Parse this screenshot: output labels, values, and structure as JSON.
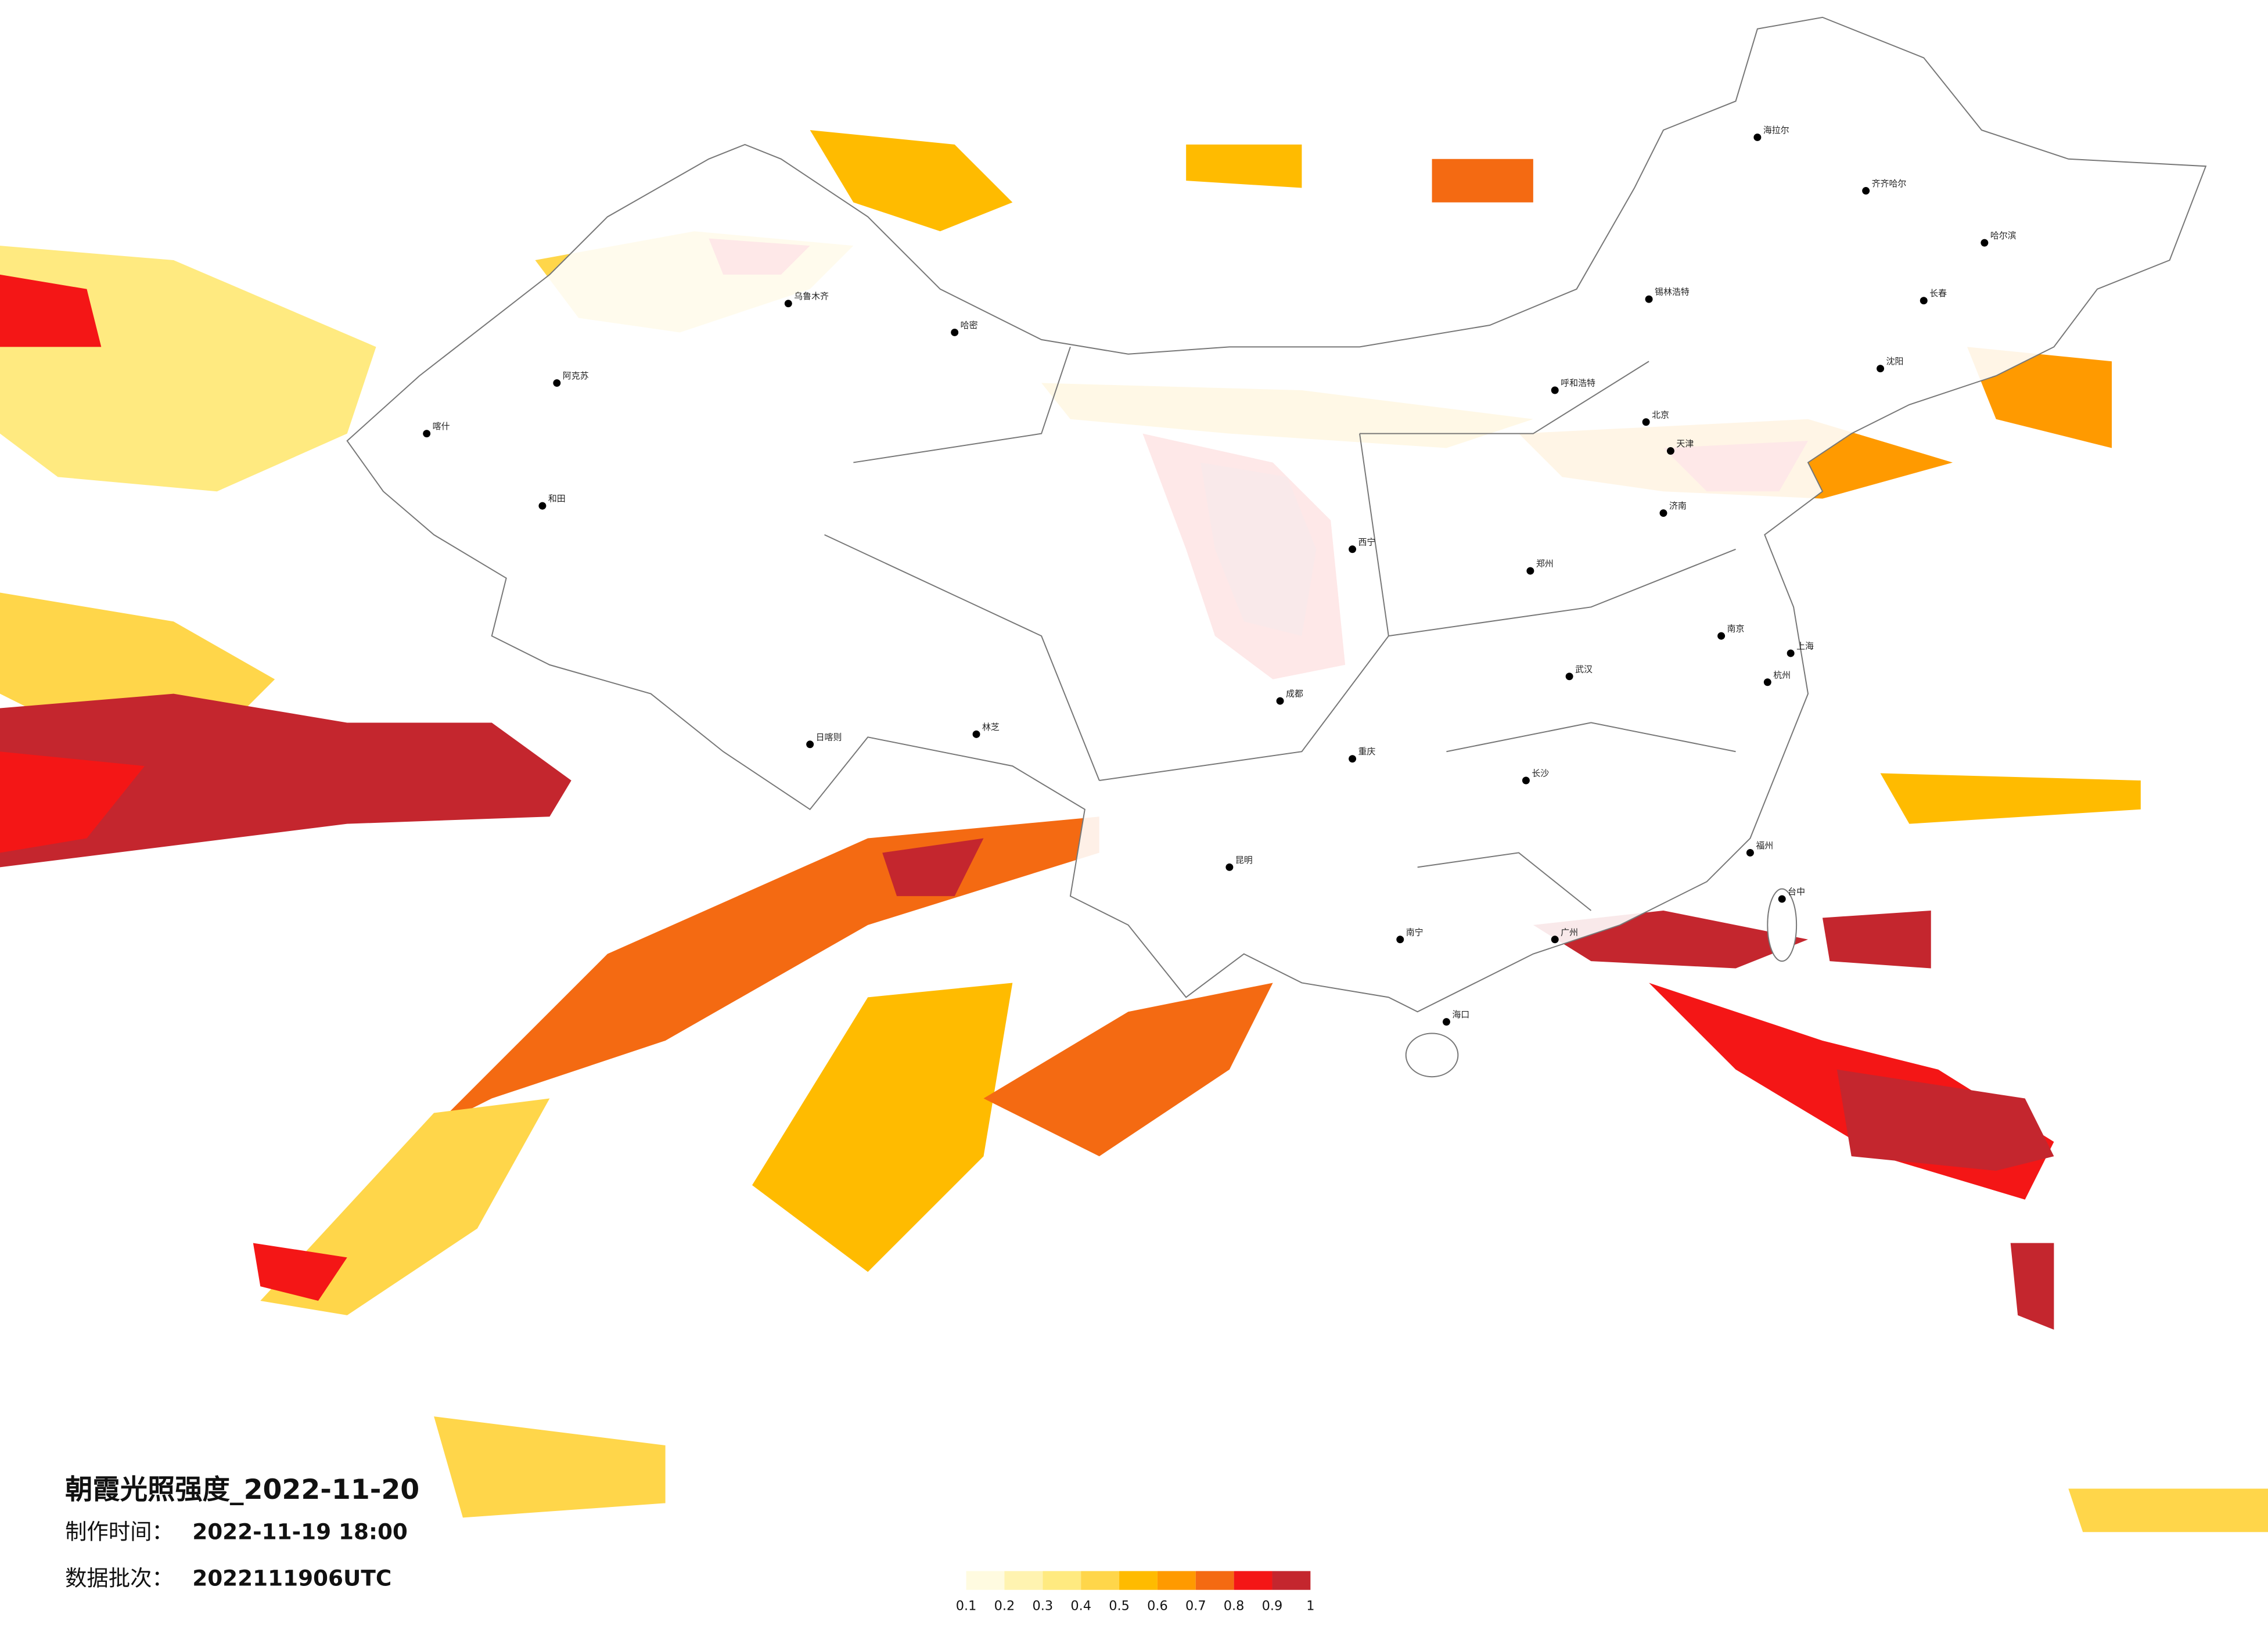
{
  "title": "朝霞光照强度_2022-11-20",
  "made_time": {
    "label": "制作时间：",
    "value": "2022-11-19 18:00"
  },
  "data_batch": {
    "label": "数据批次：",
    "value": "2022111906UTC"
  },
  "legend": {
    "colors": [
      "#fffbe0",
      "#fff3b0",
      "#ffea80",
      "#ffd64a",
      "#ffbb00",
      "#ff9a00",
      "#f46a12",
      "#f41616",
      "#c4262e"
    ],
    "ticks": [
      0.1,
      0.2,
      0.3,
      0.4,
      0.5,
      0.6,
      0.7,
      0.8,
      0.9,
      1
    ]
  },
  "cities": [
    "喀什",
    "和田",
    "阿克苏",
    "乌鲁木齐",
    "哈密",
    "日喀则",
    "林芝",
    "海拉尔",
    "齐齐哈尔",
    "哈尔滨",
    "长春",
    "沈阳",
    "锡林浩特",
    "呼和浩特",
    "北京",
    "天津",
    "济南",
    "郑州",
    "南京",
    "上海",
    "杭州",
    "武汉",
    "长沙",
    "福州",
    "台中",
    "广州",
    "南宁",
    "海口",
    "昆明",
    "成都",
    "重庆",
    "西宁"
  ]
}
